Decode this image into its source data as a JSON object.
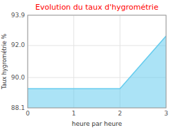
{
  "chart_data": {
    "type": "area",
    "title": "Evolution du taux d'hygrométrie",
    "xlabel": "heure par heure",
    "ylabel": "Taux hygrométrie %",
    "x": [
      0,
      2,
      3
    ],
    "values": [
      89.3,
      89.3,
      92.6
    ],
    "color": "#66ccee",
    "xlim": [
      0,
      3
    ],
    "ylim": [
      88.1,
      93.9
    ],
    "xticks": [
      0,
      1,
      2,
      3
    ],
    "yticks": [
      88.1,
      {
        "value": 90.0,
        "label": "90.0"
      },
      {
        "value": 92.0,
        "label": "92.0"
      },
      93.9
    ],
    "grid": true
  }
}
